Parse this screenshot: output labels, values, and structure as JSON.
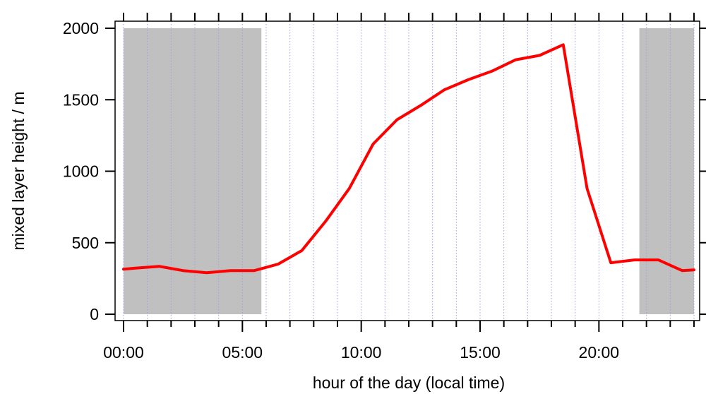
{
  "chart_data": {
    "type": "line",
    "title": "",
    "xlabel": "hour of the day (local time)",
    "ylabel": "mixed layer height / m",
    "xlim": [
      0,
      24
    ],
    "ylim": [
      0,
      2000
    ],
    "x_ticks": [
      {
        "value": 0,
        "label": "00:00"
      },
      {
        "value": 5,
        "label": "05:00"
      },
      {
        "value": 10,
        "label": "10:00"
      },
      {
        "value": 15,
        "label": "15:00"
      },
      {
        "value": 20,
        "label": "20:00"
      }
    ],
    "y_ticks": [
      {
        "value": 0,
        "label": "0"
      },
      {
        "value": 500,
        "label": "500"
      },
      {
        "value": 1000,
        "label": "1000"
      },
      {
        "value": 1500,
        "label": "1500"
      },
      {
        "value": 2000,
        "label": "2000"
      }
    ],
    "grid": "vertical dotted at each hour",
    "night_shading": [
      {
        "from": 0,
        "to": 5.8
      },
      {
        "from": 21.7,
        "to": 24
      }
    ],
    "colors": {
      "line": "#ff0000",
      "shading": "#c0c0c0",
      "grid": "#9aa0e8"
    },
    "series": [
      {
        "x": [
          0,
          0.5,
          1.5,
          2.5,
          3.5,
          4.5,
          5.5,
          6.5,
          7.5,
          8.5,
          9.5,
          10.5,
          11.5,
          12.5,
          13.5,
          14.5,
          15.5,
          16.5,
          17.5,
          18.5,
          19.5,
          20.5,
          21.5,
          22.5,
          23.5,
          24
        ],
        "y": [
          315,
          322,
          335,
          305,
          290,
          305,
          305,
          350,
          445,
          650,
          880,
          1190,
          1360,
          1460,
          1570,
          1640,
          1700,
          1780,
          1810,
          1885,
          880,
          360,
          380,
          380,
          305,
          310
        ]
      }
    ]
  }
}
